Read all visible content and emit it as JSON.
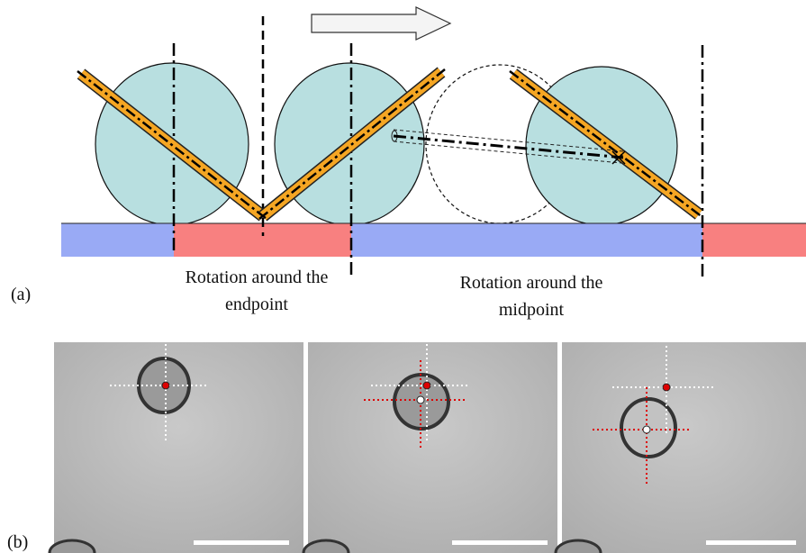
{
  "panel_labels": {
    "a": "(a)",
    "b": "(b)"
  },
  "captions": {
    "endpoint": [
      "Rotation around the",
      "endpoint"
    ],
    "midpoint": [
      "Rotation around the",
      "midpoint"
    ]
  }
}
